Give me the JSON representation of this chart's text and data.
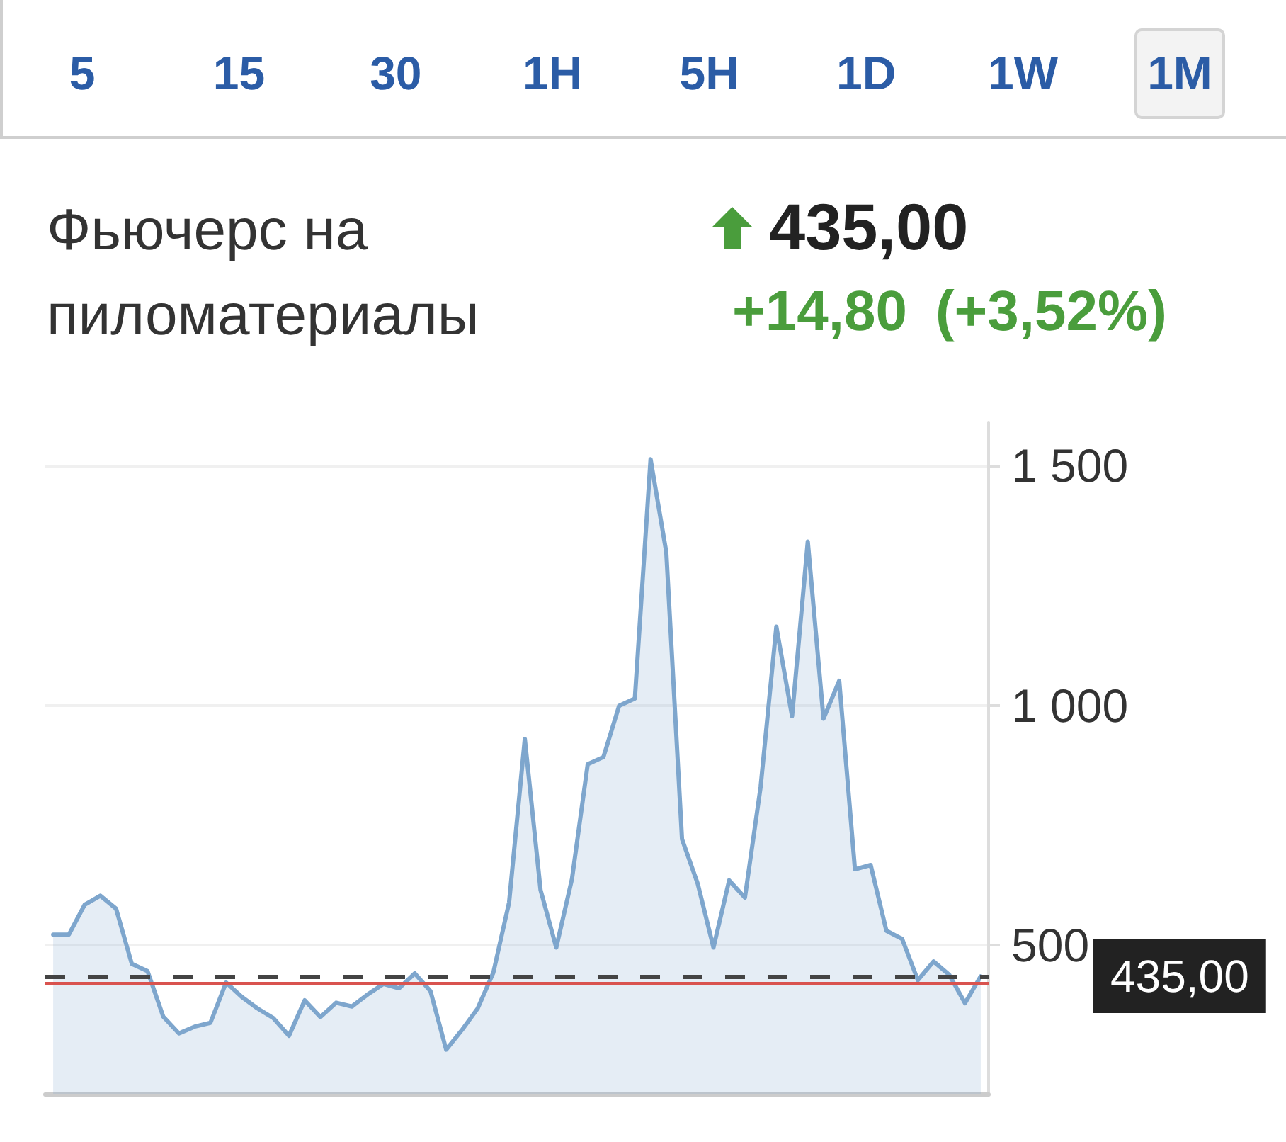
{
  "chart_data": {
    "type": "area",
    "title": "Фьючерс на пиломатериалы",
    "annotations": [
      "5",
      "15",
      "30",
      "1H",
      "5H",
      "1D",
      "1W",
      "1M",
      "435,00",
      "+14,80",
      "(+3,52%)"
    ],
    "categories": [
      null,
      null,
      null,
      null,
      null,
      null,
      null,
      null,
      null,
      null,
      null,
      null,
      null,
      null,
      null,
      null,
      null,
      null,
      null,
      null,
      null,
      null,
      null,
      null,
      null,
      null,
      null,
      null,
      null,
      null,
      null,
      null,
      null,
      null,
      null,
      null,
      null,
      null,
      null,
      null,
      null,
      null,
      null,
      null,
      null,
      null,
      null,
      null,
      null,
      null,
      null,
      null,
      null,
      null,
      null,
      null,
      null,
      null,
      null,
      null
    ],
    "values": [
      522,
      522,
      584,
      603,
      576,
      461,
      446,
      351,
      316,
      330,
      338,
      422,
      392,
      368,
      348,
      311,
      385,
      350,
      380,
      372,
      397,
      419,
      410,
      441,
      404,
      282,
      323,
      368,
      443,
      589,
      930,
      615,
      495,
      638,
      877,
      892,
      999,
      1014,
      1513,
      1319,
      721,
      628,
      495,
      635,
      599,
      830,
      1164,
      977,
      1341,
      972,
      1051,
      658,
      667,
      530,
      513,
      427,
      466,
      438,
      379,
      435
    ],
    "color": "#7ea6cd",
    "ylim": [
      190,
      1590
    ],
    "yticks": [
      500,
      {
        "value": 1000,
        "label": "1 000"
      },
      {
        "value": 1500,
        "label": "1 500"
      }
    ],
    "ref_lines": [
      {
        "axis": "y",
        "value": 435,
        "label": "435,00",
        "color": "#444444",
        "line_style": "dashed"
      },
      {
        "axis": "y",
        "value": 420,
        "color": "#d9534f"
      }
    ],
    "grid": "y",
    "tick_labels": "y"
  }
}
